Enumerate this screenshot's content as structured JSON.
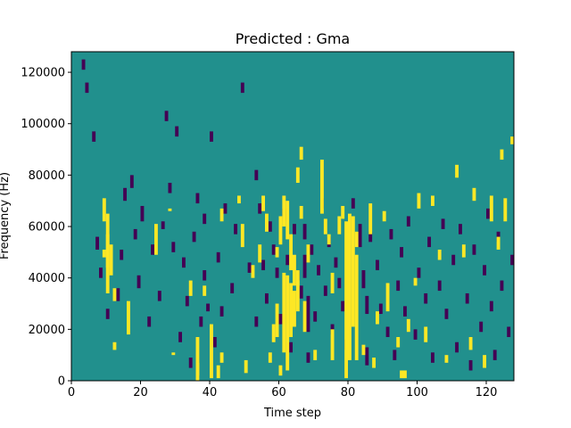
{
  "chart_data": {
    "type": "heatmap",
    "title": "Predicted : Gma",
    "xlabel": "Time step",
    "ylabel": "Frequency (Hz)",
    "xlim": [
      0,
      128
    ],
    "ylim": [
      0,
      128000
    ],
    "x_ticks": [
      0,
      20,
      40,
      60,
      80,
      100,
      120
    ],
    "y_ticks": [
      0,
      20000,
      40000,
      60000,
      80000,
      100000,
      120000
    ],
    "colormap": "viridis",
    "colors": {
      "background": "#21908d",
      "low": "#440154",
      "high": "#fde725"
    },
    "grid": false,
    "legend": "none",
    "yellow_cells": [
      [
        9,
        70,
        62
      ],
      [
        10,
        64,
        34
      ],
      [
        10,
        56,
        44
      ],
      [
        11,
        52,
        41
      ],
      [
        9,
        48,
        50
      ],
      [
        12,
        31,
        35
      ],
      [
        12,
        12,
        14
      ],
      [
        16,
        30,
        18
      ],
      [
        24,
        60,
        49
      ],
      [
        28,
        66,
        66
      ],
      [
        29,
        10,
        10
      ],
      [
        34,
        38,
        33
      ],
      [
        36,
        16,
        0
      ],
      [
        36,
        6,
        2
      ],
      [
        38,
        36,
        33
      ],
      [
        40,
        1,
        21
      ],
      [
        42,
        1,
        5
      ],
      [
        43,
        10,
        7
      ],
      [
        43,
        66,
        62
      ],
      [
        48,
        71,
        69
      ],
      [
        49,
        60,
        52
      ],
      [
        50,
        7,
        3
      ],
      [
        52,
        44,
        40
      ],
      [
        54,
        52,
        46
      ],
      [
        55,
        71,
        66
      ],
      [
        56,
        64,
        58
      ],
      [
        57,
        10,
        7
      ],
      [
        58,
        21,
        15
      ],
      [
        59,
        51,
        48
      ],
      [
        59,
        29,
        17
      ],
      [
        60,
        63,
        53
      ],
      [
        60,
        5,
        2
      ],
      [
        61,
        71,
        60
      ],
      [
        61,
        41,
        11
      ],
      [
        62,
        69,
        55
      ],
      [
        62,
        40,
        4
      ],
      [
        63,
        56,
        43
      ],
      [
        63,
        37,
        17
      ],
      [
        64,
        48,
        37
      ],
      [
        64,
        34,
        21
      ],
      [
        65,
        82,
        77
      ],
      [
        65,
        42,
        27
      ],
      [
        66,
        90,
        86
      ],
      [
        66,
        67,
        63
      ],
      [
        67,
        30,
        19
      ],
      [
        68,
        52,
        46
      ],
      [
        70,
        11,
        8
      ],
      [
        72,
        85,
        65
      ],
      [
        73,
        62,
        57
      ],
      [
        74,
        56,
        53
      ],
      [
        75,
        41,
        34
      ],
      [
        75,
        19,
        8
      ],
      [
        77,
        63,
        57
      ],
      [
        78,
        67,
        63
      ],
      [
        79,
        61,
        1
      ],
      [
        80,
        64,
        8
      ],
      [
        81,
        63,
        21
      ],
      [
        82,
        48,
        8
      ],
      [
        82,
        57,
        52
      ],
      [
        84,
        13,
        10
      ],
      [
        86,
        68,
        57
      ],
      [
        87,
        8,
        5
      ],
      [
        88,
        26,
        22
      ],
      [
        90,
        65,
        62
      ],
      [
        91,
        37,
        27
      ],
      [
        94,
        16,
        13
      ],
      [
        95,
        3,
        1
      ],
      [
        96,
        3,
        1
      ],
      [
        97,
        23,
        19
      ],
      [
        99,
        39,
        37
      ],
      [
        100,
        72,
        67
      ],
      [
        102,
        20,
        15
      ],
      [
        104,
        71,
        68
      ],
      [
        106,
        50,
        47
      ],
      [
        108,
        9,
        7
      ],
      [
        111,
        83,
        79
      ],
      [
        113,
        52,
        48
      ],
      [
        115,
        16,
        12
      ],
      [
        116,
        74,
        70
      ],
      [
        119,
        9,
        5
      ],
      [
        121,
        71,
        62
      ],
      [
        123,
        55,
        51
      ],
      [
        124,
        89,
        86
      ],
      [
        125,
        70,
        62
      ],
      [
        127,
        94,
        92
      ]
    ],
    "purple_cells": [
      [
        3,
        124,
        121
      ],
      [
        4,
        115,
        112
      ],
      [
        6,
        96,
        93
      ],
      [
        7,
        55,
        51
      ],
      [
        8,
        43,
        40
      ],
      [
        10,
        27,
        24
      ],
      [
        13,
        35,
        31
      ],
      [
        14,
        50,
        47
      ],
      [
        15,
        74,
        70
      ],
      [
        17,
        79,
        75
      ],
      [
        18,
        58,
        55
      ],
      [
        19,
        40,
        36
      ],
      [
        20,
        67,
        62
      ],
      [
        22,
        24,
        21
      ],
      [
        23,
        52,
        49
      ],
      [
        25,
        34,
        31
      ],
      [
        26,
        61,
        59
      ],
      [
        27,
        104,
        101
      ],
      [
        28,
        76,
        73
      ],
      [
        29,
        53,
        50
      ],
      [
        30,
        98,
        95
      ],
      [
        31,
        18,
        15
      ],
      [
        32,
        47,
        44
      ],
      [
        33,
        32,
        29
      ],
      [
        34,
        8,
        5
      ],
      [
        35,
        57,
        54
      ],
      [
        36,
        72,
        69
      ],
      [
        37,
        24,
        21
      ],
      [
        38,
        64,
        61
      ],
      [
        38,
        42,
        39
      ],
      [
        39,
        29,
        27
      ],
      [
        40,
        96,
        93
      ],
      [
        41,
        16,
        13
      ],
      [
        42,
        49,
        46
      ],
      [
        43,
        28,
        25
      ],
      [
        44,
        68,
        65
      ],
      [
        46,
        37,
        34
      ],
      [
        47,
        60,
        57
      ],
      [
        49,
        115,
        112
      ],
      [
        51,
        45,
        42
      ],
      [
        53,
        81,
        78
      ],
      [
        53,
        24,
        21
      ],
      [
        54,
        68,
        65
      ],
      [
        55,
        46,
        43
      ],
      [
        56,
        33,
        30
      ],
      [
        57,
        61,
        58
      ],
      [
        58,
        52,
        49
      ],
      [
        59,
        43,
        40
      ],
      [
        60,
        25,
        22
      ],
      [
        61,
        66,
        62
      ],
      [
        62,
        48,
        45
      ],
      [
        63,
        14,
        11
      ],
      [
        64,
        60,
        57
      ],
      [
        65,
        42,
        39
      ],
      [
        66,
        36,
        32
      ],
      [
        67,
        60,
        55
      ],
      [
        67,
        48,
        40
      ],
      [
        68,
        32,
        19
      ],
      [
        68,
        10,
        7
      ],
      [
        69,
        52,
        49
      ],
      [
        70,
        26,
        23
      ],
      [
        71,
        44,
        41
      ],
      [
        72,
        70,
        67
      ],
      [
        73,
        36,
        33
      ],
      [
        74,
        55,
        52
      ],
      [
        75,
        21,
        18
      ],
      [
        76,
        47,
        44
      ],
      [
        77,
        39,
        36
      ],
      [
        78,
        30,
        27
      ],
      [
        79,
        15,
        12
      ],
      [
        81,
        70,
        67
      ],
      [
        83,
        60,
        52
      ],
      [
        84,
        42,
        36
      ],
      [
        85,
        32,
        26
      ],
      [
        85,
        12,
        6
      ],
      [
        86,
        57,
        54
      ],
      [
        88,
        46,
        43
      ],
      [
        89,
        29,
        26
      ],
      [
        91,
        20,
        17
      ],
      [
        92,
        58,
        55
      ],
      [
        93,
        11,
        8
      ],
      [
        94,
        38,
        35
      ],
      [
        95,
        51,
        48
      ],
      [
        96,
        28,
        25
      ],
      [
        97,
        63,
        60
      ],
      [
        99,
        19,
        16
      ],
      [
        100,
        43,
        40
      ],
      [
        102,
        33,
        30
      ],
      [
        103,
        55,
        52
      ],
      [
        104,
        10,
        7
      ],
      [
        106,
        38,
        35
      ],
      [
        107,
        62,
        59
      ],
      [
        108,
        27,
        24
      ],
      [
        110,
        48,
        45
      ],
      [
        111,
        14,
        11
      ],
      [
        112,
        60,
        57
      ],
      [
        114,
        33,
        30
      ],
      [
        115,
        7,
        4
      ],
      [
        116,
        52,
        49
      ],
      [
        118,
        22,
        19
      ],
      [
        119,
        44,
        41
      ],
      [
        120,
        66,
        63
      ],
      [
        121,
        30,
        27
      ],
      [
        122,
        11,
        8
      ],
      [
        123,
        57,
        54
      ],
      [
        124,
        38,
        35
      ],
      [
        126,
        20,
        17
      ],
      [
        127,
        48,
        45
      ]
    ]
  }
}
